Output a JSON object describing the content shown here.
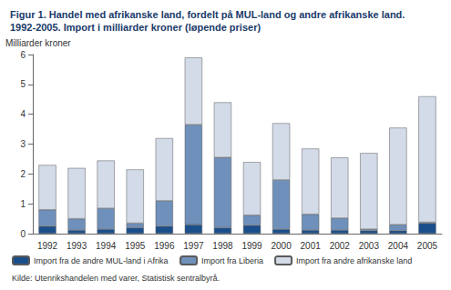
{
  "chart_data": {
    "type": "bar",
    "title": "Figur 1. Handel med afrikanske land, fordelt på MUL-land og andre afrikanske land.\n1992-2005. Import i milliarder kroner (løpende priser)",
    "y_label": "Milliarder kroner",
    "source": "Kilde: Utenrikshandelen med varer, Statistisk sentralbyrå.",
    "categories": [
      "1992",
      "1993",
      "1994",
      "1995",
      "1996",
      "1997",
      "1998",
      "1999",
      "2000",
      "2001",
      "2002",
      "2003",
      "2004",
      "2005"
    ],
    "series": [
      {
        "name": "Import fra de andre MUL-land i Afrika",
        "color": "#1b4f8c",
        "values": [
          0.25,
          0.12,
          0.15,
          0.2,
          0.25,
          0.3,
          0.2,
          0.28,
          0.15,
          0.12,
          0.12,
          0.1,
          0.1,
          0.35
        ]
      },
      {
        "name": "Import fra Liberia",
        "color": "#6f90ba",
        "values": [
          0.55,
          0.38,
          0.7,
          0.15,
          0.85,
          3.35,
          2.35,
          0.34,
          1.65,
          0.53,
          0.4,
          0.05,
          0.2,
          0.03
        ]
      },
      {
        "name": "Import fra andre afrikanske land",
        "color": "#d3dae8",
        "values": [
          1.5,
          1.7,
          1.6,
          1.8,
          2.1,
          2.25,
          1.85,
          1.78,
          1.9,
          2.2,
          2.03,
          2.55,
          3.25,
          4.22
        ]
      }
    ],
    "ylim": [
      0,
      6
    ],
    "yticks": [
      0,
      1,
      2,
      3,
      4,
      5,
      6
    ],
    "stacked": true,
    "grid": false,
    "legend": "bottom"
  }
}
